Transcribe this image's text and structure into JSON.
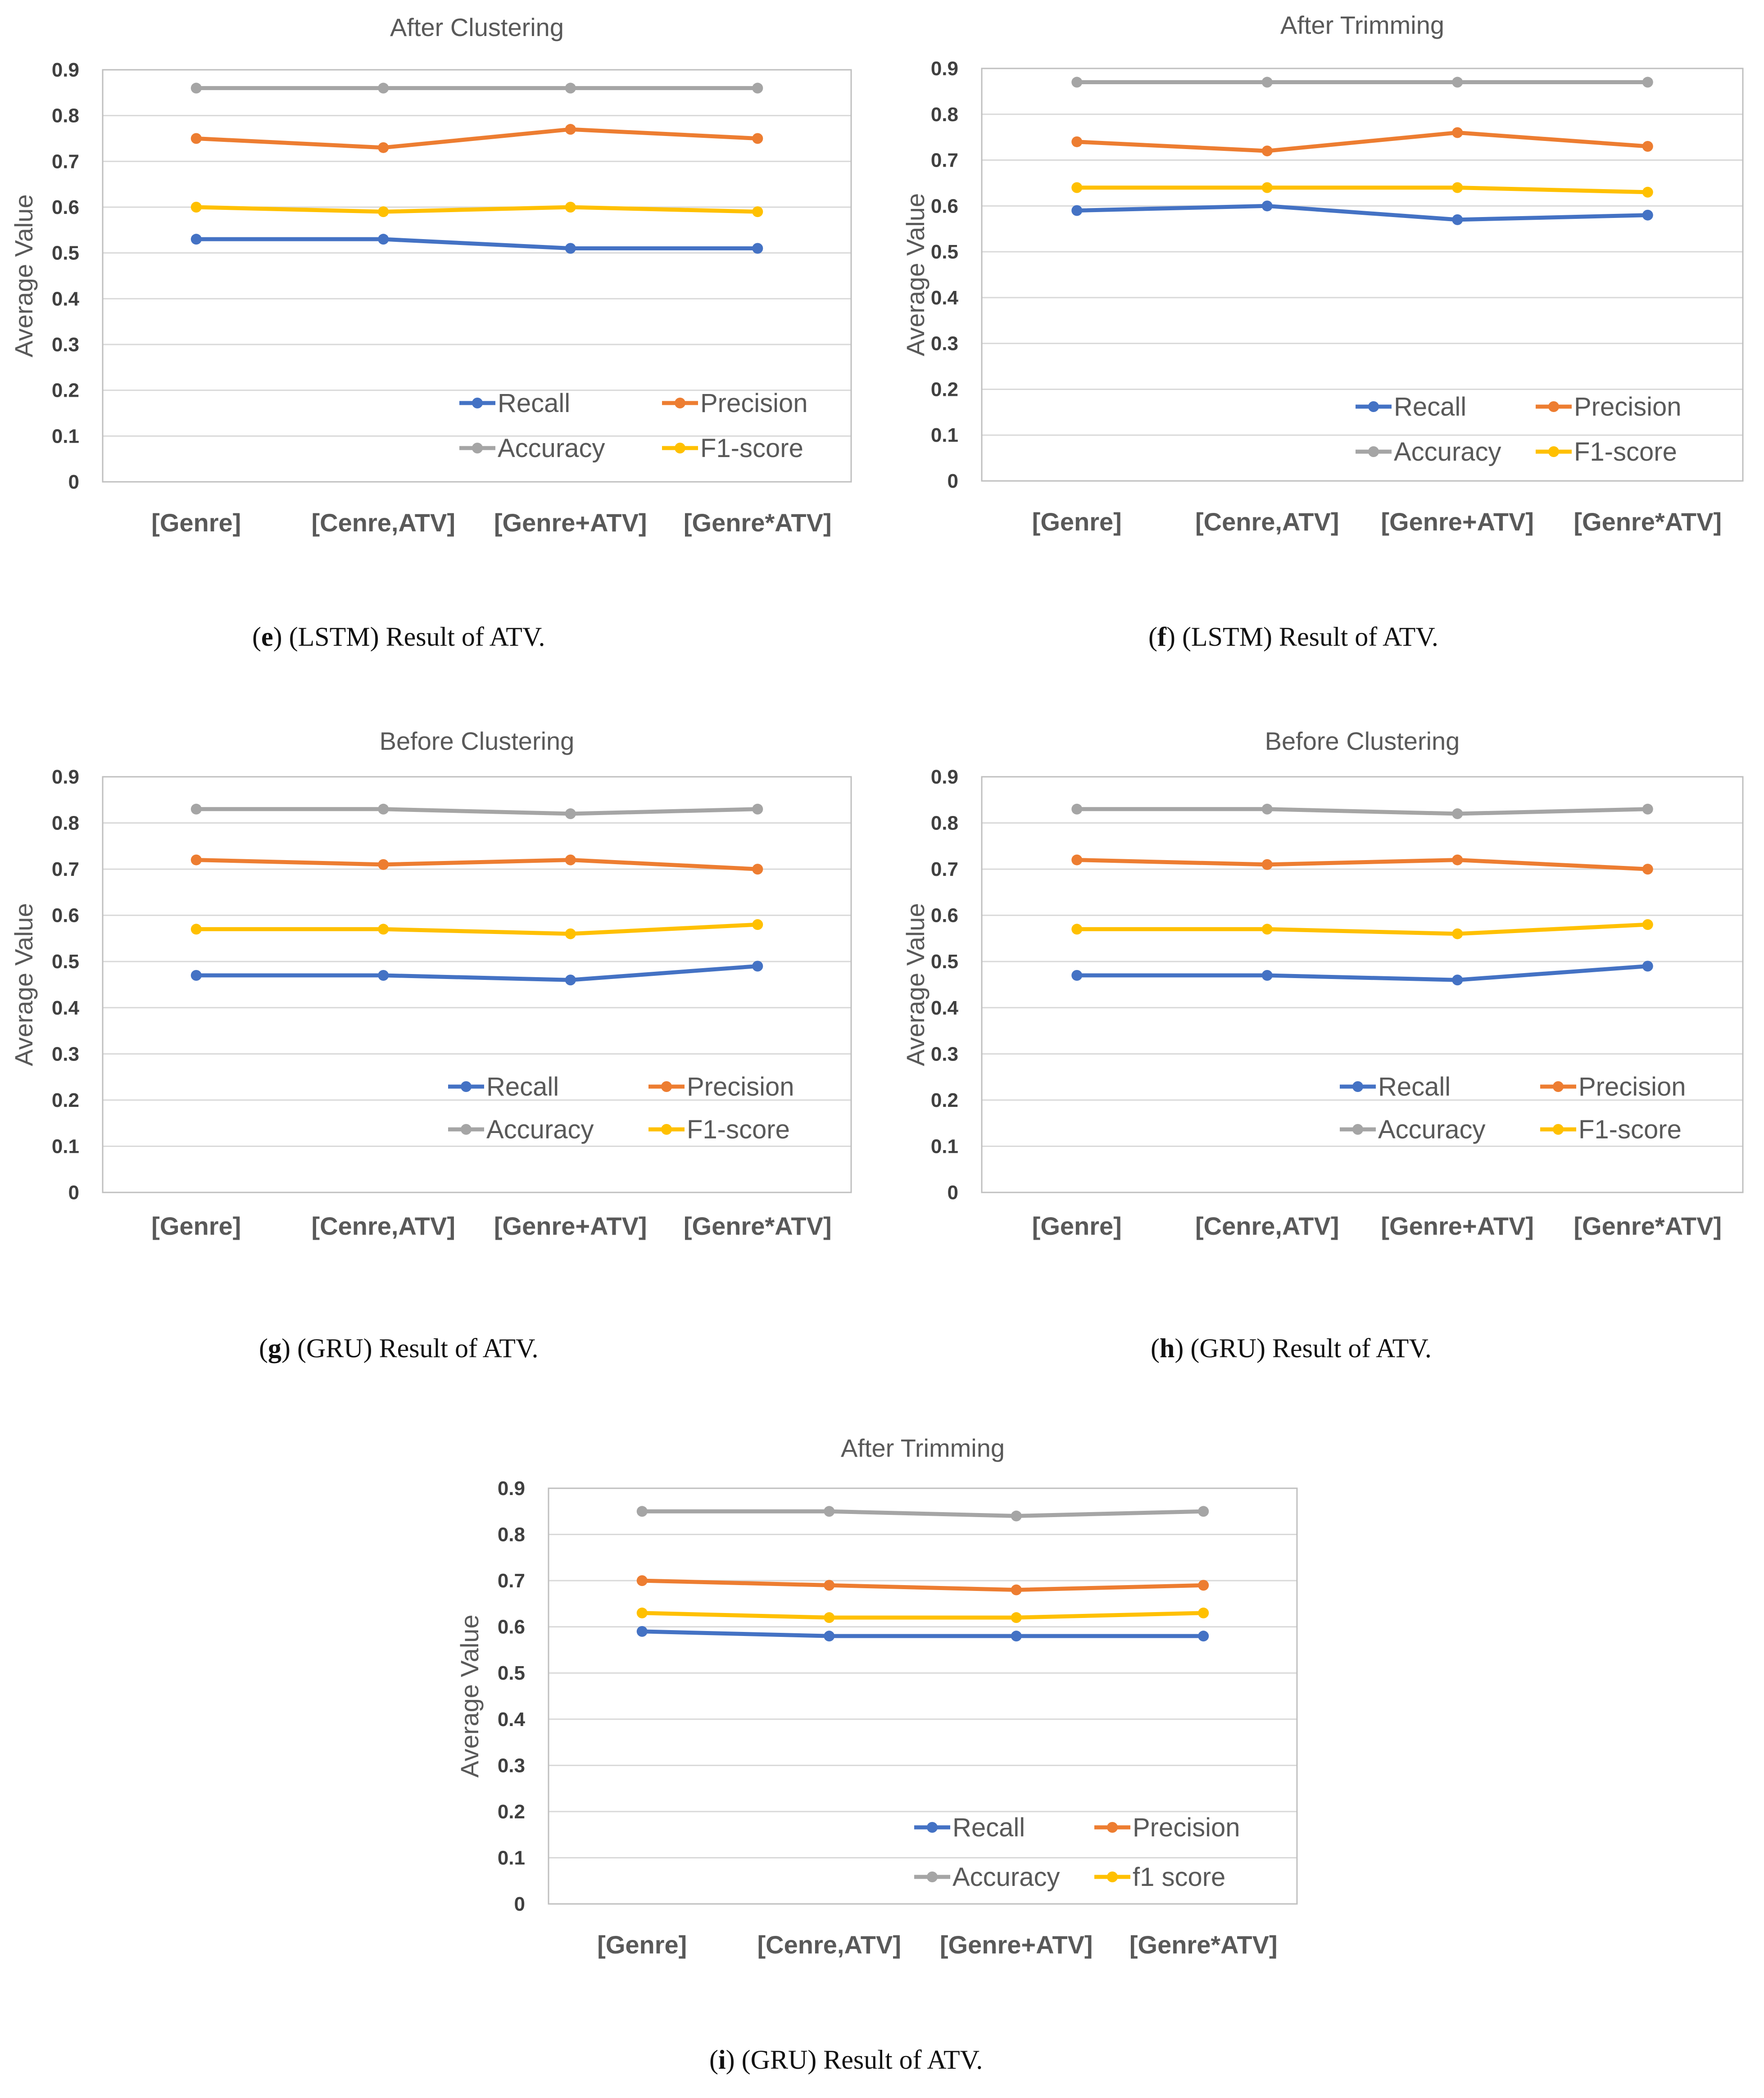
{
  "chart_data": [
    {
      "id": "e",
      "type": "line",
      "title": "After Clustering",
      "ylabel": "Average Value",
      "xlabel": "",
      "ylim": [
        0,
        0.9
      ],
      "yticks": [
        "0",
        "0.1",
        "0.2",
        "0.3",
        "0.4",
        "0.5",
        "0.6",
        "0.7",
        "0.8",
        "0.9"
      ],
      "categories": [
        "[Genre]",
        "[Cenre,ATV]",
        "[Genre+ATV]",
        "[Genre*ATV]"
      ],
      "series": [
        {
          "name": "Recall",
          "color": "#4472c4",
          "values": [
            0.53,
            0.53,
            0.51,
            0.51
          ]
        },
        {
          "name": "Precision",
          "color": "#ed7d31",
          "values": [
            0.75,
            0.73,
            0.77,
            0.75
          ]
        },
        {
          "name": "Accuracy",
          "color": "#a5a5a5",
          "values": [
            0.86,
            0.86,
            0.86,
            0.86
          ]
        },
        {
          "name": "F1-score",
          "color": "#ffc000",
          "values": [
            0.6,
            0.59,
            0.6,
            0.59
          ]
        }
      ],
      "caption": {
        "letter": "e",
        "text": " (LSTM) Result of ATV."
      }
    },
    {
      "id": "f",
      "type": "line",
      "title": "After Trimming",
      "ylabel": "Average Value",
      "xlabel": "",
      "ylim": [
        0,
        0.9
      ],
      "yticks": [
        "0",
        "0.1",
        "0.2",
        "0.3",
        "0.4",
        "0.5",
        "0.6",
        "0.7",
        "0.8",
        "0.9"
      ],
      "categories": [
        "[Genre]",
        "[Cenre,ATV]",
        "[Genre+ATV]",
        "[Genre*ATV]"
      ],
      "series": [
        {
          "name": "Recall",
          "color": "#4472c4",
          "values": [
            0.59,
            0.6,
            0.57,
            0.58
          ]
        },
        {
          "name": "Precision",
          "color": "#ed7d31",
          "values": [
            0.74,
            0.72,
            0.76,
            0.73
          ]
        },
        {
          "name": "Accuracy",
          "color": "#a5a5a5",
          "values": [
            0.87,
            0.87,
            0.87,
            0.87
          ]
        },
        {
          "name": "F1-score",
          "color": "#ffc000",
          "values": [
            0.64,
            0.64,
            0.64,
            0.63
          ]
        }
      ],
      "caption": {
        "letter": "f",
        "text": " (LSTM) Result of ATV."
      }
    },
    {
      "id": "g",
      "type": "line",
      "title": "Before Clustering",
      "ylabel": "Average Value",
      "xlabel": "",
      "ylim": [
        0,
        0.9
      ],
      "yticks": [
        "0",
        "0.1",
        "0.2",
        "0.3",
        "0.4",
        "0.5",
        "0.6",
        "0.7",
        "0.8",
        "0.9"
      ],
      "categories": [
        "[Genre]",
        "[Cenre,ATV]",
        "[Genre+ATV]",
        "[Genre*ATV]"
      ],
      "series": [
        {
          "name": "Recall",
          "color": "#4472c4",
          "values": [
            0.47,
            0.47,
            0.46,
            0.49
          ]
        },
        {
          "name": "Precision",
          "color": "#ed7d31",
          "values": [
            0.72,
            0.71,
            0.72,
            0.7
          ]
        },
        {
          "name": "Accuracy",
          "color": "#a5a5a5",
          "values": [
            0.83,
            0.83,
            0.82,
            0.83
          ]
        },
        {
          "name": "F1-score",
          "color": "#ffc000",
          "values": [
            0.57,
            0.57,
            0.56,
            0.58
          ]
        }
      ],
      "caption": {
        "letter": "g",
        "text": " (GRU) Result of ATV."
      }
    },
    {
      "id": "h",
      "type": "line",
      "title": "Before Clustering",
      "ylabel": "Average Value",
      "xlabel": "",
      "ylim": [
        0,
        0.9
      ],
      "yticks": [
        "0",
        "0.1",
        "0.2",
        "0.3",
        "0.4",
        "0.5",
        "0.6",
        "0.7",
        "0.8",
        "0.9"
      ],
      "categories": [
        "[Genre]",
        "[Cenre,ATV]",
        "[Genre+ATV]",
        "[Genre*ATV]"
      ],
      "series": [
        {
          "name": "Recall",
          "color": "#4472c4",
          "values": [
            0.47,
            0.47,
            0.46,
            0.49
          ]
        },
        {
          "name": "Precision",
          "color": "#ed7d31",
          "values": [
            0.72,
            0.71,
            0.72,
            0.7
          ]
        },
        {
          "name": "Accuracy",
          "color": "#a5a5a5",
          "values": [
            0.83,
            0.83,
            0.82,
            0.83
          ]
        },
        {
          "name": "F1-score",
          "color": "#ffc000",
          "values": [
            0.57,
            0.57,
            0.56,
            0.58
          ]
        }
      ],
      "caption": {
        "letter": "h",
        "text": " (GRU) Result of ATV."
      }
    },
    {
      "id": "i",
      "type": "line",
      "title": "After Trimming",
      "ylabel": "Average Value",
      "xlabel": "",
      "ylim": [
        0,
        0.9
      ],
      "yticks": [
        "0",
        "0.1",
        "0.2",
        "0.3",
        "0.4",
        "0.5",
        "0.6",
        "0.7",
        "0.8",
        "0.9"
      ],
      "categories": [
        "[Genre]",
        "[Cenre,ATV]",
        "[Genre+ATV]",
        "[Genre*ATV]"
      ],
      "series": [
        {
          "name": "Recall",
          "color": "#4472c4",
          "values": [
            0.59,
            0.58,
            0.58,
            0.58
          ]
        },
        {
          "name": "Precision",
          "color": "#ed7d31",
          "values": [
            0.7,
            0.69,
            0.68,
            0.69
          ]
        },
        {
          "name": "Accuracy",
          "color": "#a5a5a5",
          "values": [
            0.85,
            0.85,
            0.84,
            0.85
          ]
        },
        {
          "name": "f1 score",
          "color": "#ffc000",
          "values": [
            0.63,
            0.62,
            0.62,
            0.63
          ]
        }
      ],
      "caption": {
        "letter": "i",
        "text": " (GRU) Result of ATV."
      }
    }
  ]
}
